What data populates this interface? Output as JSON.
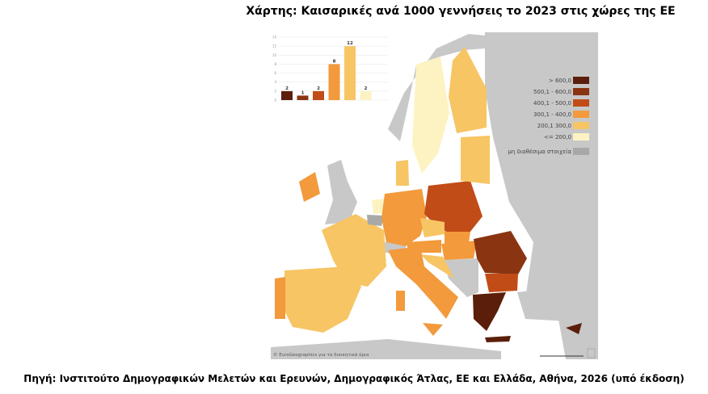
{
  "title": "Χάρτης: Καισαρικές ανά 1000 γεννήσεις το 2023 στις χώρες της ΕΕ",
  "source": "Πηγή: Ινστιτούτο Δημογραφικών Μελετών και Ερευνών, Δημογραφικός Άτλας, ΕΕ και Ελλάδα, Αθήνα, 2026 (υπό έκδοση)",
  "colors": {
    "c600": "#5b1e0b",
    "c500": "#8a3411",
    "c400": "#c24c17",
    "c300": "#f29a3c",
    "c200": "#f7c564",
    "c0": "#fdf3c2",
    "na": "#a8a8a8",
    "land": "#c8c8c8",
    "sea": "#ffffff"
  },
  "legend": {
    "items": [
      {
        "label": "> 600,0",
        "color": "#5b1e0b"
      },
      {
        "label": "500,1 - 600,0",
        "color": "#8a3411"
      },
      {
        "label": "400,1 - 500,0",
        "color": "#c24c17"
      },
      {
        "label": "300,1 - 400,0",
        "color": "#f29a3c"
      },
      {
        "label": "200,1  300,0",
        "color": "#f7c564"
      },
      {
        "label": "<= 200,0",
        "color": "#fdf3c2"
      }
    ],
    "na_label": "μη διαθέσιμα στοιχεία"
  },
  "credit": "© EuroGeographics για τα διοικητικά όρια",
  "chart_data": {
    "type": "bar",
    "categories": [
      "> 600,0",
      "500,1 - 600,0",
      "400,1 - 500,0",
      "300,1 - 400,0",
      "200,1  300,0",
      "<= 200,0"
    ],
    "values": [
      2,
      1,
      2,
      8,
      12,
      2
    ],
    "ylim": [
      0,
      14
    ],
    "yticks": [
      "0",
      "2",
      "4",
      "6",
      "8",
      "10",
      "12",
      "14"
    ],
    "colors": [
      "#5b1e0b",
      "#8a3411",
      "#c24c17",
      "#f29a3c",
      "#f7c564",
      "#fdf3c2"
    ],
    "grid": true
  }
}
